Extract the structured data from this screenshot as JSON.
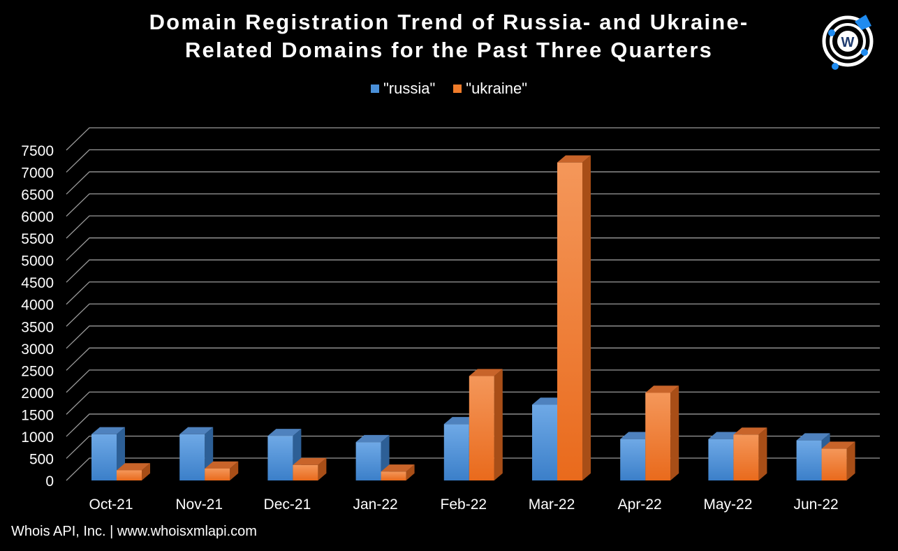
{
  "header": {
    "title_line1": "Domain Registration Trend of Russia- and Ukraine-",
    "title_line2": "Related Domains for the Past Three Quarters"
  },
  "legend": [
    {
      "label": "\"russia\"",
      "color": "#4a90d9"
    },
    {
      "label": "\"ukraine\"",
      "color": "#f07c2a"
    }
  ],
  "footer": {
    "text": "Whois API, Inc. | www.whoisxmlapi.com"
  },
  "logo": {
    "icon": "whois-logo-icon",
    "letter": "W",
    "color": "#1f8bf0"
  },
  "chart_data": {
    "type": "bar",
    "categories": [
      "Oct-21",
      "Nov-21",
      "Dec-21",
      "Jan-22",
      "Feb-22",
      "Mar-22",
      "Apr-22",
      "May-22",
      "Jun-22"
    ],
    "series": [
      {
        "name": "\"russia\"",
        "color": "#4a90d9",
        "values": [
          1050,
          1050,
          1010,
          870,
          1280,
          1720,
          940,
          940,
          910
        ]
      },
      {
        "name": "\"ukraine\"",
        "color": "#f07c2a",
        "values": [
          230,
          270,
          350,
          200,
          2370,
          7220,
          1990,
          1040,
          720
        ]
      }
    ],
    "ylim": [
      0,
      7500
    ],
    "yticks": [
      0,
      500,
      1000,
      1500,
      2000,
      2500,
      3000,
      3500,
      4000,
      4500,
      5000,
      5500,
      6000,
      6500,
      7000,
      7500
    ],
    "grid": true,
    "legend_position": "top",
    "style": "3d-clustered-column"
  }
}
